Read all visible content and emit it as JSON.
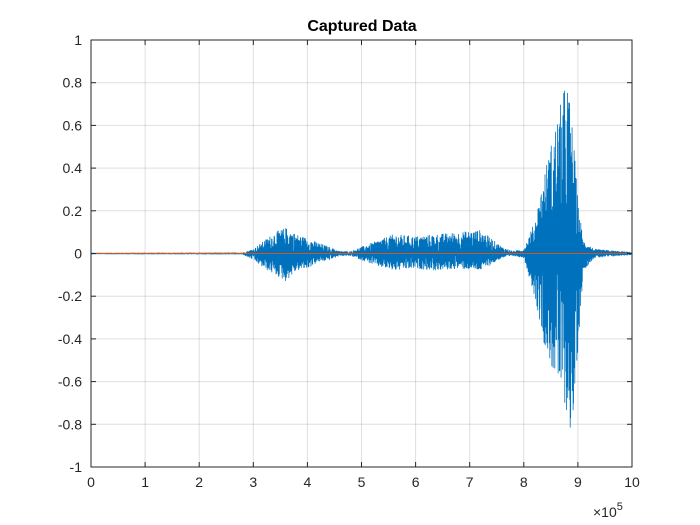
{
  "chart_data": {
    "type": "line",
    "title": "Captured Data",
    "xlabel": "",
    "ylabel": "",
    "xlim": [
      0,
      10
    ],
    "ylim": [
      -1,
      1
    ],
    "x_ticks": [
      "0",
      "1",
      "2",
      "3",
      "4",
      "5",
      "6",
      "7",
      "8",
      "9",
      "10"
    ],
    "y_ticks": [
      "1",
      "0.8",
      "0.6",
      "0.4",
      "0.2",
      "0",
      "-0.2",
      "-0.4",
      "-0.6",
      "-0.8",
      "-1"
    ],
    "x_exponent_base": "×10",
    "x_exponent_power": "5",
    "grid": true,
    "series": [
      {
        "color": "#0072BD",
        "envelope": [
          {
            "x": 0.0,
            "top": 0.002,
            "bottom": -0.002
          },
          {
            "x": 2.8,
            "top": 0.003,
            "bottom": -0.003
          },
          {
            "x": 3.0,
            "top": 0.02,
            "bottom": -0.03
          },
          {
            "x": 3.2,
            "top": 0.06,
            "bottom": -0.07
          },
          {
            "x": 3.4,
            "top": 0.1,
            "bottom": -0.1
          },
          {
            "x": 3.6,
            "top": 0.12,
            "bottom": -0.13
          },
          {
            "x": 3.8,
            "top": 0.09,
            "bottom": -0.08
          },
          {
            "x": 4.0,
            "top": 0.07,
            "bottom": -0.07
          },
          {
            "x": 4.2,
            "top": 0.05,
            "bottom": -0.04
          },
          {
            "x": 4.4,
            "top": 0.03,
            "bottom": -0.03
          },
          {
            "x": 4.6,
            "top": 0.01,
            "bottom": -0.01
          },
          {
            "x": 4.8,
            "top": 0.01,
            "bottom": -0.01
          },
          {
            "x": 5.0,
            "top": 0.03,
            "bottom": -0.03
          },
          {
            "x": 5.3,
            "top": 0.06,
            "bottom": -0.06
          },
          {
            "x": 5.6,
            "top": 0.09,
            "bottom": -0.08
          },
          {
            "x": 6.0,
            "top": 0.08,
            "bottom": -0.07
          },
          {
            "x": 6.4,
            "top": 0.09,
            "bottom": -0.08
          },
          {
            "x": 6.8,
            "top": 0.1,
            "bottom": -0.07
          },
          {
            "x": 7.2,
            "top": 0.11,
            "bottom": -0.08
          },
          {
            "x": 7.4,
            "top": 0.07,
            "bottom": -0.05
          },
          {
            "x": 7.6,
            "top": 0.03,
            "bottom": -0.02
          },
          {
            "x": 7.8,
            "top": 0.01,
            "bottom": -0.01
          },
          {
            "x": 8.0,
            "top": 0.02,
            "bottom": -0.02
          },
          {
            "x": 8.2,
            "top": 0.15,
            "bottom": -0.2
          },
          {
            "x": 8.4,
            "top": 0.4,
            "bottom": -0.45
          },
          {
            "x": 8.6,
            "top": 0.62,
            "bottom": -0.6
          },
          {
            "x": 8.8,
            "top": 0.83,
            "bottom": -0.75
          },
          {
            "x": 8.9,
            "top": 0.6,
            "bottom": -0.89
          },
          {
            "x": 9.0,
            "top": 0.25,
            "bottom": -0.45
          },
          {
            "x": 9.1,
            "top": 0.06,
            "bottom": -0.08
          },
          {
            "x": 9.3,
            "top": 0.02,
            "bottom": -0.02
          },
          {
            "x": 10.0,
            "top": 0.005,
            "bottom": -0.005
          }
        ]
      },
      {
        "color": "#D95319",
        "x": [
          0,
          10
        ],
        "y": [
          0,
          0
        ]
      }
    ]
  }
}
